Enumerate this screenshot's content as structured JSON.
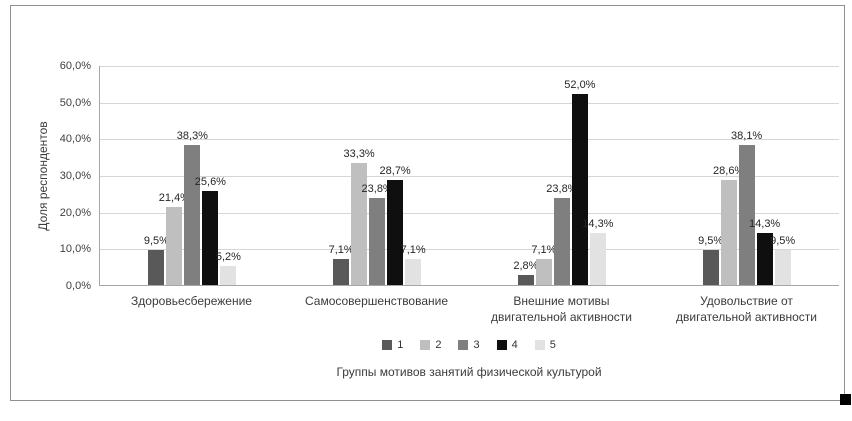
{
  "chart_data": {
    "type": "bar",
    "title": "",
    "ylabel": "Доля респондентов",
    "xlabel": "Группы мотивов занятий физической культурой",
    "ylim": [
      0,
      60
    ],
    "ytick_step": 10,
    "ytick_labels": [
      "0,0%",
      "10,0%",
      "20,0%",
      "30,0%",
      "40,0%",
      "50,0%",
      "60,0%"
    ],
    "grid": true,
    "legend_position": "bottom",
    "categories": [
      "Здоровьесбережение",
      "Самосовершенствование",
      "Внешние мотивы двигательной активности",
      "Удовольствие от двигательной активности"
    ],
    "series": [
      {
        "name": "1",
        "color": "#595959",
        "values": [
          9.5,
          7.1,
          2.8,
          9.5
        ],
        "labels": [
          "9,5%",
          "7,1%",
          "2,8%",
          "9,5%"
        ]
      },
      {
        "name": "2",
        "color": "#bfbfbf",
        "values": [
          21.4,
          33.3,
          7.1,
          28.6
        ],
        "labels": [
          "21,4%",
          "33,3%",
          "7,1%",
          "28,6%"
        ]
      },
      {
        "name": "3",
        "color": "#7f7f7f",
        "values": [
          38.3,
          23.8,
          23.8,
          38.1
        ],
        "labels": [
          "38,3%",
          "23,8%",
          "23,8%",
          "38,1%"
        ]
      },
      {
        "name": "4",
        "color": "#0f0f0f",
        "values": [
          25.6,
          28.7,
          52.0,
          14.3
        ],
        "labels": [
          "25,6%",
          "28,7%",
          "52,0%",
          "14,3%"
        ]
      },
      {
        "name": "5",
        "color": "#e2e2e2",
        "values": [
          5.2,
          7.1,
          14.3,
          9.5
        ],
        "labels": [
          "5,2%",
          "7,1%",
          "14,3%",
          "9,5%"
        ]
      }
    ]
  }
}
